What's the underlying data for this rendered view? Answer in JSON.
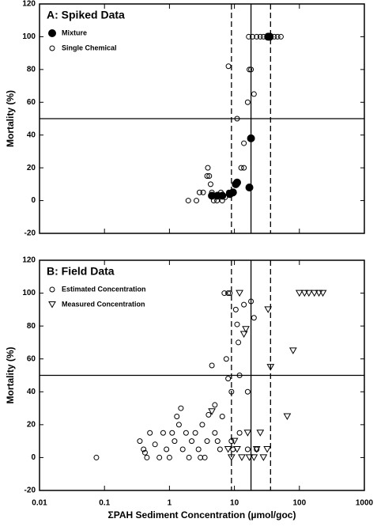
{
  "chart_data": [
    {
      "type": "scatter",
      "title": "A: Spiked Data",
      "y_label": "Mortality (%)",
      "log_x": true,
      "xlim": [
        0.01,
        1000
      ],
      "xticks": [
        0.01,
        0.1,
        1,
        10,
        100,
        1000
      ],
      "ylim": [
        -20,
        120
      ],
      "yticks": [
        -20,
        0,
        20,
        40,
        60,
        80,
        100,
        120
      ],
      "vlines": [
        {
          "value": 9,
          "style": "dashed"
        },
        {
          "value": 18,
          "style": "solid"
        },
        {
          "value": 36,
          "style": "dashed"
        }
      ],
      "hline": 50,
      "legend": "top-left",
      "show_xtick_labels": false,
      "series": [
        {
          "name": "Mixture",
          "color": "#000000",
          "marker": "circle-filled",
          "x": [
            4.5,
            5.5,
            6.5,
            8.5,
            9.5,
            10.5,
            11,
            17,
            18,
            33,
            35
          ],
          "values": [
            3,
            3,
            3,
            4,
            5,
            10,
            11,
            8,
            38,
            100,
            100
          ]
        },
        {
          "name": "Single Chemical",
          "color": "#000000",
          "marker": "circle-open",
          "x": [
            1.95,
            2.6,
            2.9,
            3.3,
            3.8,
            3.9,
            4.1,
            4.3,
            4.5,
            4.8,
            5,
            5.4,
            6.2,
            6.5,
            7.2,
            8.2,
            8.1,
            11,
            12.7,
            14,
            14,
            16,
            17,
            18,
            20,
            16.6,
            19,
            22,
            25,
            28,
            41,
            46,
            52
          ],
          "values": [
            0,
            0,
            5,
            5,
            15,
            20,
            15,
            10,
            5,
            0,
            3,
            0,
            5,
            0,
            2,
            5,
            82,
            50,
            20,
            20,
            35,
            60,
            80,
            80,
            65,
            100,
            100,
            100,
            100,
            100,
            100,
            100,
            100
          ]
        }
      ]
    },
    {
      "type": "scatter",
      "title": "B: Field Data",
      "y_label": "Mortality (%)",
      "x_label": "ΣPAH Sediment Concentration (µmol/goc)",
      "log_x": true,
      "xlim": [
        0.01,
        1000
      ],
      "xticks": [
        0.01,
        0.1,
        1,
        10,
        100,
        1000
      ],
      "ylim": [
        -20,
        120
      ],
      "yticks": [
        -20,
        0,
        20,
        40,
        60,
        80,
        100,
        120
      ],
      "vlines": [
        {
          "value": 9,
          "style": "dashed"
        },
        {
          "value": 18,
          "style": "solid"
        },
        {
          "value": 36,
          "style": "dashed"
        }
      ],
      "hline": 50,
      "legend": "top-left",
      "show_xtick_labels": true,
      "series": [
        {
          "name": "Estimated Concentration",
          "color": "#000000",
          "marker": "circle-open",
          "x": [
            0.075,
            0.35,
            0.4,
            0.42,
            0.45,
            0.5,
            0.6,
            0.7,
            0.8,
            0.9,
            1,
            1.1,
            1.2,
            1.3,
            1.4,
            1.5,
            1.6,
            1.8,
            2,
            2.2,
            2.5,
            2.8,
            3,
            3.2,
            3.5,
            3.8,
            4,
            4.5,
            5,
            5,
            5.5,
            6,
            6.5,
            7,
            7.5,
            8,
            8,
            8.5,
            9,
            9,
            9.5,
            10.5,
            11,
            11.5,
            12,
            12,
            14,
            16,
            16,
            18,
            20,
            22
          ],
          "values": [
            0,
            10,
            5,
            3,
            0,
            15,
            8,
            0,
            15,
            5,
            0,
            15,
            10,
            25,
            20,
            30,
            5,
            15,
            0,
            10,
            15,
            5,
            0,
            20,
            0,
            10,
            26,
            56,
            15,
            32,
            10,
            5,
            25,
            100,
            60,
            100,
            48,
            100,
            40,
            10,
            5,
            90,
            81,
            70,
            50,
            15,
            93,
            40,
            5,
            95,
            85,
            5
          ]
        },
        {
          "name": "Measured Concentration",
          "color": "#000000",
          "marker": "triangle-open",
          "x": [
            4.5,
            8,
            9,
            10,
            11,
            12,
            13,
            14,
            15,
            16,
            17,
            20,
            22,
            25,
            28,
            32,
            33,
            36,
            65,
            80,
            100,
            120,
            140,
            170,
            200,
            230
          ],
          "values": [
            28,
            5,
            0,
            10,
            5,
            100,
            0,
            75,
            78,
            15,
            0,
            0,
            5,
            15,
            0,
            5,
            90,
            55,
            25,
            65,
            100,
            100,
            100,
            100,
            100,
            100
          ]
        }
      ]
    }
  ]
}
